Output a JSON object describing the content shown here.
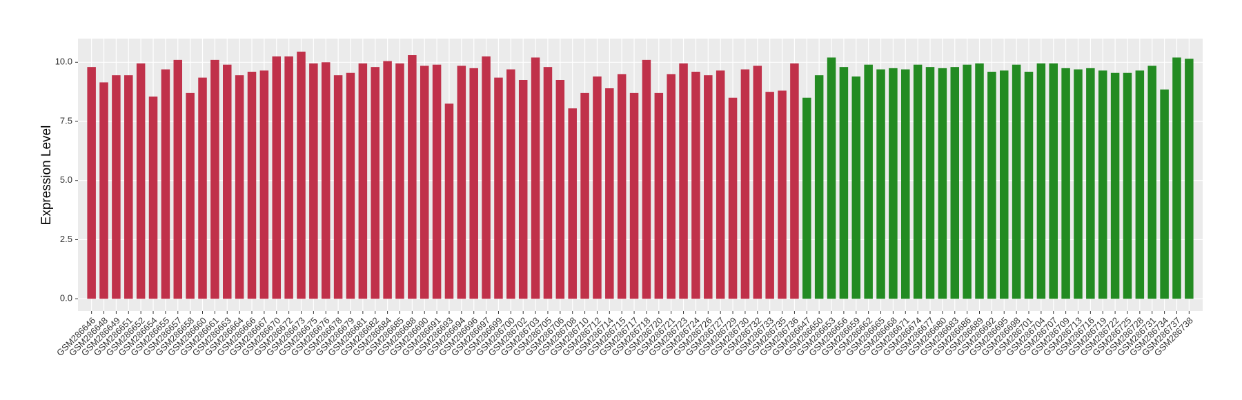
{
  "chart_data": {
    "type": "bar",
    "y_label": "Expression Level",
    "categories": [
      "GSM286646",
      "GSM286648",
      "GSM286649",
      "GSM286651",
      "GSM286652",
      "GSM286654",
      "GSM286655",
      "GSM286657",
      "GSM286658",
      "GSM286660",
      "GSM286661",
      "GSM286663",
      "GSM286664",
      "GSM286666",
      "GSM286667",
      "GSM286670",
      "GSM286672",
      "GSM286673",
      "GSM286675",
      "GSM286676",
      "GSM286678",
      "GSM286679",
      "GSM286681",
      "GSM286682",
      "GSM286684",
      "GSM286685",
      "GSM286688",
      "GSM286690",
      "GSM286691",
      "GSM286693",
      "GSM286694",
      "GSM286696",
      "GSM286697",
      "GSM286699",
      "GSM286700",
      "GSM286702",
      "GSM286703",
      "GSM286705",
      "GSM286706",
      "GSM286708",
      "GSM286710",
      "GSM286712",
      "GSM286714",
      "GSM286715",
      "GSM286717",
      "GSM286718",
      "GSM286720",
      "GSM286721",
      "GSM286723",
      "GSM286724",
      "GSM286726",
      "GSM286727",
      "GSM286729",
      "GSM286730",
      "GSM286732",
      "GSM286733",
      "GSM286735",
      "GSM286736",
      "GSM286647",
      "GSM286650",
      "GSM286653",
      "GSM286656",
      "GSM286659",
      "GSM286662",
      "GSM286665",
      "GSM286668",
      "GSM286671",
      "GSM286674",
      "GSM286677",
      "GSM286680",
      "GSM286683",
      "GSM286686",
      "GSM286689",
      "GSM286692",
      "GSM286695",
      "GSM286698",
      "GSM286701",
      "GSM286704",
      "GSM286707",
      "GSM286709",
      "GSM286713",
      "GSM286716",
      "GSM286719",
      "GSM286722",
      "GSM286725",
      "GSM286728",
      "GSM286731",
      "GSM286734",
      "GSM286737",
      "GSM286738"
    ],
    "values": [
      9.8,
      9.15,
      9.45,
      9.45,
      9.95,
      8.55,
      9.7,
      10.1,
      8.7,
      9.35,
      10.1,
      9.9,
      9.45,
      9.6,
      9.65,
      10.25,
      10.25,
      10.45,
      9.95,
      10.0,
      9.45,
      9.55,
      9.95,
      9.8,
      10.05,
      9.95,
      10.3,
      9.85,
      9.9,
      8.25,
      9.85,
      9.75,
      10.25,
      9.35,
      9.7,
      9.25,
      10.2,
      9.8,
      9.25,
      8.05,
      8.7,
      9.4,
      8.9,
      9.5,
      8.7,
      10.1,
      8.7,
      9.5,
      9.95,
      9.6,
      9.45,
      9.65,
      8.5,
      9.7,
      9.85,
      8.75,
      8.8,
      9.95,
      8.5,
      9.45,
      10.2,
      9.8,
      9.4,
      9.9,
      9.7,
      9.75,
      9.7,
      9.9,
      9.8,
      9.75,
      9.8,
      9.9,
      9.95,
      9.6,
      9.65,
      9.9,
      9.6,
      9.95,
      9.95,
      9.75,
      9.7,
      9.75,
      9.65,
      9.55,
      9.55,
      9.65,
      9.85,
      8.85,
      10.2,
      10.15
    ],
    "bar_colors": [
      "#c0314a",
      "#c0314a",
      "#c0314a",
      "#c0314a",
      "#c0314a",
      "#c0314a",
      "#c0314a",
      "#c0314a",
      "#c0314a",
      "#c0314a",
      "#c0314a",
      "#c0314a",
      "#c0314a",
      "#c0314a",
      "#c0314a",
      "#c0314a",
      "#c0314a",
      "#c0314a",
      "#c0314a",
      "#c0314a",
      "#c0314a",
      "#c0314a",
      "#c0314a",
      "#c0314a",
      "#c0314a",
      "#c0314a",
      "#c0314a",
      "#c0314a",
      "#c0314a",
      "#c0314a",
      "#c0314a",
      "#c0314a",
      "#c0314a",
      "#c0314a",
      "#c0314a",
      "#c0314a",
      "#c0314a",
      "#c0314a",
      "#c0314a",
      "#c0314a",
      "#c0314a",
      "#c0314a",
      "#c0314a",
      "#c0314a",
      "#c0314a",
      "#c0314a",
      "#c0314a",
      "#c0314a",
      "#c0314a",
      "#c0314a",
      "#c0314a",
      "#c0314a",
      "#c0314a",
      "#c0314a",
      "#c0314a",
      "#c0314a",
      "#c0314a",
      "#c0314a",
      "#238b22",
      "#238b22",
      "#238b22",
      "#238b22",
      "#238b22",
      "#238b22",
      "#238b22",
      "#238b22",
      "#238b22",
      "#238b22",
      "#238b22",
      "#238b22",
      "#238b22",
      "#238b22",
      "#238b22",
      "#238b22",
      "#238b22",
      "#238b22",
      "#238b22",
      "#238b22",
      "#238b22",
      "#238b22",
      "#238b22",
      "#238b22",
      "#238b22",
      "#238b22",
      "#238b22",
      "#238b22",
      "#238b22",
      "#238b22",
      "#238b22",
      "#238b22"
    ],
    "ylim": [
      -0.52,
      11.0
    ],
    "yticks": [
      {
        "value": 0,
        "label": "0.0"
      },
      {
        "value": 2.5,
        "label": "2.5"
      },
      {
        "value": 5,
        "label": "5.0"
      },
      {
        "value": 7.5,
        "label": "7.5"
      },
      {
        "value": 10,
        "label": "10.0"
      }
    ],
    "grid": true
  }
}
